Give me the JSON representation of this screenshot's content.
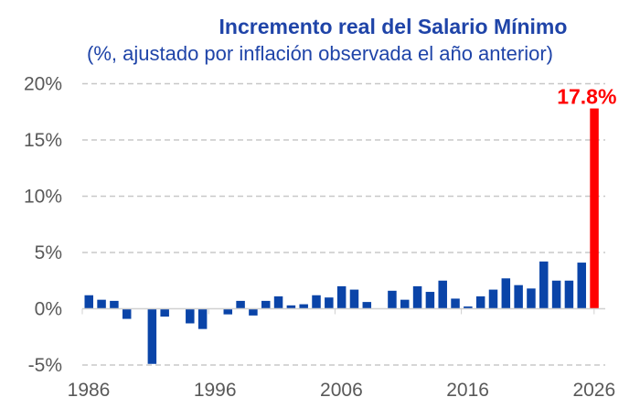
{
  "chart_data": {
    "type": "bar",
    "title": "Incremento real del Salario Mínimo",
    "subtitle": "(%, ajustado por inflación observada el año anterior)",
    "xlabel": "",
    "ylabel": "",
    "ylim": [
      -5,
      20
    ],
    "yticks": [
      -5,
      0,
      5,
      10,
      15,
      20
    ],
    "ytick_labels": [
      "-5%",
      "0%",
      "5%",
      "10%",
      "15%",
      "20%"
    ],
    "xtick_labels": [
      "1986",
      "1996",
      "2006",
      "2016",
      "2026"
    ],
    "grid": "horizontal dashed",
    "categories": [
      1986,
      1987,
      1988,
      1989,
      1990,
      1991,
      1992,
      1993,
      1994,
      1995,
      1996,
      1997,
      1998,
      1999,
      2000,
      2001,
      2002,
      2003,
      2004,
      2005,
      2006,
      2007,
      2008,
      2009,
      2010,
      2011,
      2012,
      2013,
      2014,
      2015,
      2016,
      2017,
      2018,
      2019,
      2020,
      2021,
      2022,
      2023,
      2024,
      2025,
      2026
    ],
    "values": [
      1.2,
      0.8,
      0.7,
      -0.9,
      0.0,
      -4.9,
      -0.7,
      0.0,
      -1.3,
      -1.8,
      0.0,
      -0.5,
      0.7,
      -0.6,
      0.7,
      1.1,
      0.3,
      0.4,
      1.2,
      1.0,
      2.0,
      1.7,
      0.6,
      0.0,
      1.6,
      0.8,
      2.0,
      1.5,
      2.5,
      0.9,
      0.2,
      1.1,
      1.7,
      2.7,
      2.1,
      1.8,
      4.2,
      2.5,
      2.5,
      4.1,
      17.8
    ],
    "highlight": {
      "category": 2026,
      "label": "17.8%",
      "color": "#ff0000"
    },
    "bar_color": "#0a44a8",
    "title_color": "#1f44a8"
  }
}
